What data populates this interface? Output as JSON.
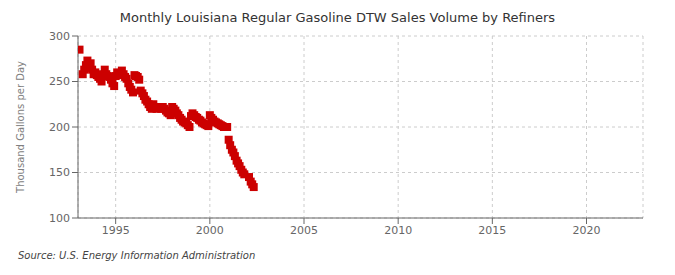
{
  "chart_data": {
    "type": "scatter",
    "title": "Monthly Louisiana Regular Gasoline DTW Sales Volume by Refiners",
    "ylabel": "Thousand Gallons per Day",
    "source": "Source: U.S. Energy Information Administration",
    "color": "#cc0000",
    "marker": "square",
    "grid": true,
    "xlim": [
      1993.0,
      2023.0
    ],
    "ylim": [
      100,
      300
    ],
    "xticks": [
      1995,
      2000,
      2005,
      2010,
      2015,
      2020
    ],
    "yticks": [
      100,
      150,
      200,
      250,
      300
    ],
    "x": [
      1993.08,
      1993.25,
      1993.33,
      1993.42,
      1993.5,
      1993.58,
      1993.67,
      1993.75,
      1993.83,
      1993.92,
      1994.0,
      1994.08,
      1994.17,
      1994.25,
      1994.33,
      1994.42,
      1994.5,
      1994.58,
      1994.67,
      1994.75,
      1994.83,
      1994.92,
      1995.0,
      1995.08,
      1995.17,
      1995.25,
      1995.33,
      1995.42,
      1995.5,
      1995.58,
      1995.67,
      1995.75,
      1995.83,
      1995.92,
      1996.0,
      1996.08,
      1996.17,
      1996.25,
      1996.33,
      1996.42,
      1996.5,
      1996.58,
      1996.67,
      1996.75,
      1996.83,
      1996.92,
      1997.0,
      1997.08,
      1997.17,
      1997.25,
      1997.33,
      1997.42,
      1997.5,
      1997.58,
      1997.67,
      1997.75,
      1997.83,
      1997.92,
      1998.0,
      1998.08,
      1998.17,
      1998.25,
      1998.33,
      1998.42,
      1998.5,
      1998.58,
      1998.67,
      1998.75,
      1998.83,
      1998.92,
      1999.0,
      1999.08,
      1999.17,
      1999.25,
      1999.33,
      1999.42,
      1999.5,
      1999.58,
      1999.67,
      1999.75,
      1999.83,
      1999.92,
      2000.0,
      2000.08,
      2000.17,
      2000.25,
      2000.33,
      2000.42,
      2000.5,
      2000.58,
      2000.67,
      2000.75,
      2000.83,
      2000.92,
      2001.0,
      2001.08,
      2001.17,
      2001.25,
      2001.33,
      2001.42,
      2001.5,
      2001.58,
      2001.67,
      2001.75,
      2001.83,
      2002.08,
      2002.17,
      2002.25,
      2002.33
    ],
    "values": [
      285,
      258,
      263,
      268,
      273,
      265,
      270,
      263,
      258,
      260,
      257,
      255,
      253,
      250,
      258,
      263,
      258,
      256,
      255,
      252,
      248,
      245,
      256,
      260,
      258,
      257,
      262,
      258,
      255,
      253,
      248,
      244,
      241,
      238,
      257,
      256,
      255,
      252,
      240,
      237,
      234,
      230,
      228,
      225,
      222,
      220,
      225,
      222,
      220,
      222,
      221,
      220,
      222,
      220,
      218,
      216,
      215,
      213,
      222,
      220,
      218,
      215,
      213,
      210,
      208,
      206,
      205,
      204,
      202,
      200,
      212,
      215,
      213,
      211,
      210,
      208,
      207,
      205,
      204,
      203,
      202,
      201,
      213,
      210,
      208,
      206,
      205,
      204,
      203,
      202,
      201,
      200,
      200,
      200,
      186,
      180,
      175,
      172,
      168,
      163,
      160,
      157,
      153,
      150,
      148,
      145,
      140,
      137,
      134
    ]
  }
}
